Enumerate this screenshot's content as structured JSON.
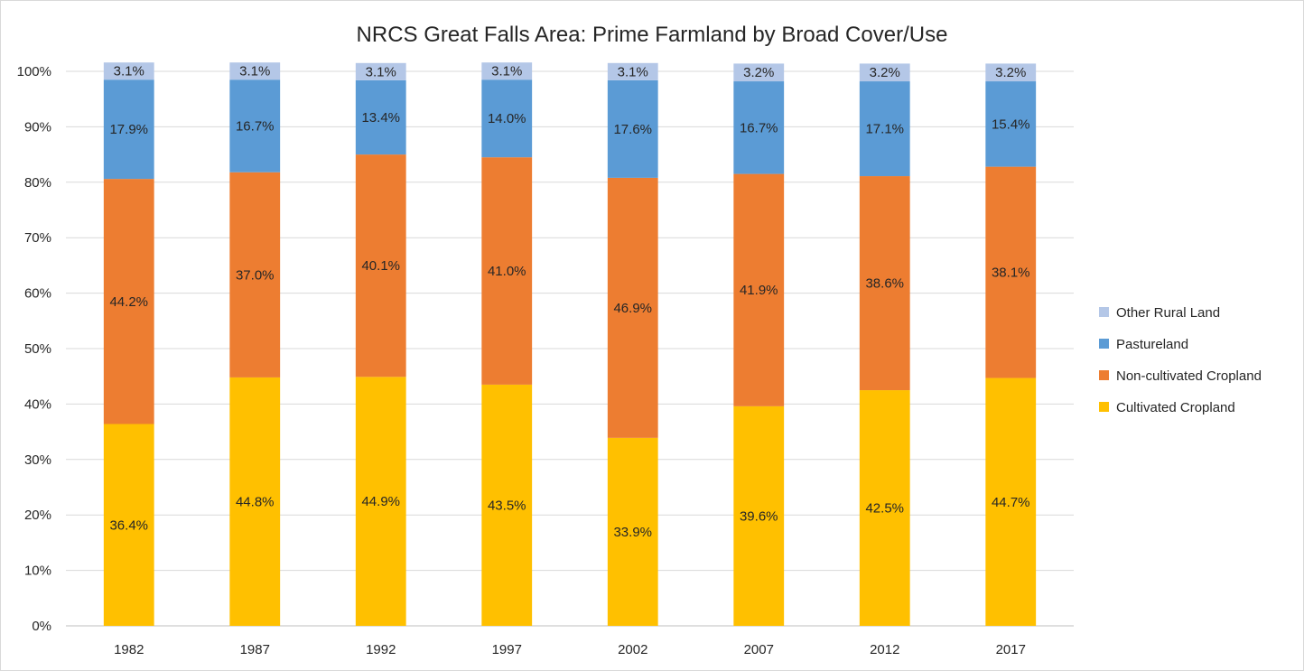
{
  "chart_data": {
    "type": "bar",
    "stacked": true,
    "title": "NRCS Great Falls Area:  Prime Farmland by Broad Cover/Use",
    "xlabel": "",
    "ylabel": "",
    "ylim": [
      0,
      100
    ],
    "yticks": [
      "0%",
      "10%",
      "20%",
      "30%",
      "40%",
      "50%",
      "60%",
      "70%",
      "80%",
      "90%",
      "100%"
    ],
    "grid": true,
    "legend_position": "right",
    "categories": [
      "1982",
      "1987",
      "1992",
      "1997",
      "2002",
      "2007",
      "2012",
      "2017"
    ],
    "series": [
      {
        "name": "Cultivated Cropland",
        "color": "#FFC000",
        "values": [
          36.4,
          44.8,
          44.9,
          43.5,
          33.9,
          39.6,
          42.5,
          44.7
        ]
      },
      {
        "name": "Non-cultivated Cropland",
        "color": "#ED7D31",
        "values": [
          44.2,
          37.0,
          40.1,
          41.0,
          46.9,
          41.9,
          38.6,
          38.1
        ]
      },
      {
        "name": "Pastureland",
        "color": "#5B9BD5",
        "values": [
          17.9,
          16.7,
          13.4,
          14.0,
          17.6,
          16.7,
          17.1,
          15.4
        ]
      },
      {
        "name": "Other Rural Land",
        "color": "#B4C7E7",
        "values": [
          3.1,
          3.1,
          3.1,
          3.1,
          3.1,
          3.2,
          3.2,
          3.2
        ]
      }
    ],
    "legend_order": [
      "Other Rural Land",
      "Pastureland",
      "Non-cultivated Cropland",
      "Cultivated Cropland"
    ]
  }
}
